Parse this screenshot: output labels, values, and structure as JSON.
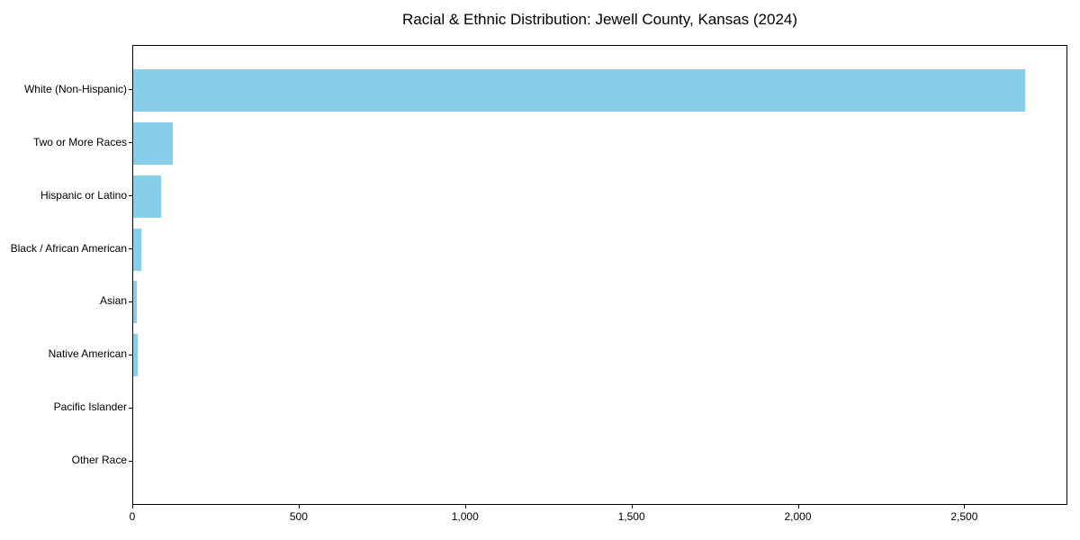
{
  "title": "Racial & Ethnic Distribution: Jewell County, Kansas (2024)",
  "chart_data": {
    "type": "bar",
    "orientation": "horizontal",
    "title": "Racial & Ethnic Distribution: Jewell County, Kansas (2024)",
    "categories": [
      "White (Non-Hispanic)",
      "Two or More Races",
      "Hispanic or Latino",
      "Black / African American",
      "Asian",
      "Native American",
      "Pacific Islander",
      "Other Race"
    ],
    "values": [
      2680,
      120,
      85,
      23,
      11,
      14,
      0,
      0
    ],
    "xlabel": "",
    "ylabel": "",
    "xlim": [
      0,
      2810
    ],
    "xticks": [
      0,
      500,
      1000,
      1500,
      2000,
      2500
    ],
    "xtick_labels": [
      "0",
      "500",
      "1,000",
      "1,500",
      "2,000",
      "2,500"
    ],
    "bar_color": "#87CEEB",
    "grid": false,
    "legend": null,
    "background_color": "#ffffff",
    "spine_color": "#000000"
  }
}
